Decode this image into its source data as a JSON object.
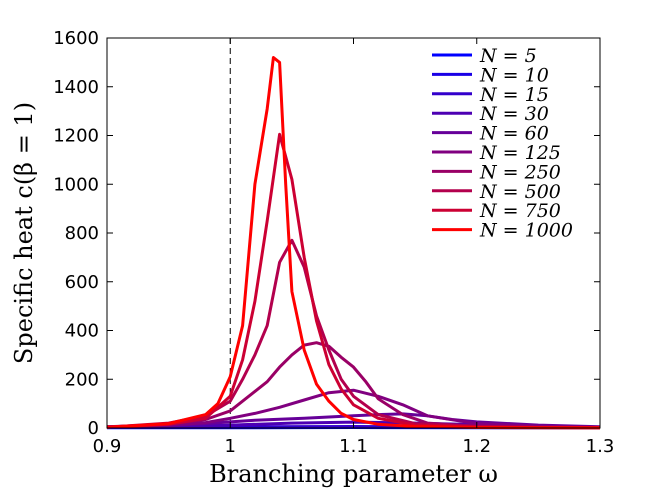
{
  "chart_data": {
    "type": "line",
    "title": "",
    "xlabel": "Branching parameter ω",
    "ylabel": "Specific heat c(β = 1)",
    "xlim": [
      0.9,
      1.3
    ],
    "ylim": [
      0,
      1600
    ],
    "xticks": [
      "0.9",
      "1",
      "1.1",
      "1.2",
      "1.3"
    ],
    "yticks": [
      "0",
      "200",
      "400",
      "600",
      "800",
      "1000",
      "1200",
      "1400",
      "1600"
    ],
    "grid": false,
    "legend_position": "top-right",
    "reference_line": {
      "x": 1.0,
      "style": "dashed",
      "color": "#000000"
    },
    "series": [
      {
        "name": "N = 5",
        "color": "#0000ff",
        "x": [
          0.9,
          1.0,
          1.1,
          1.2,
          1.3
        ],
        "y": [
          1,
          1,
          2,
          1,
          1
        ]
      },
      {
        "name": "N = 10",
        "color": "#1a00e6",
        "x": [
          0.9,
          1.0,
          1.1,
          1.2,
          1.3
        ],
        "y": [
          2,
          3,
          4,
          2,
          1
        ]
      },
      {
        "name": "N = 15",
        "color": "#3300cc",
        "x": [
          0.9,
          1.0,
          1.1,
          1.2,
          1.3
        ],
        "y": [
          3,
          5,
          6,
          3,
          1
        ]
      },
      {
        "name": "N = 30",
        "color": "#4d00b3",
        "x": [
          0.9,
          0.95,
          1.0,
          1.05,
          1.1,
          1.15,
          1.2,
          1.25,
          1.3
        ],
        "y": [
          3,
          6,
          12,
          20,
          24,
          20,
          14,
          8,
          3
        ]
      },
      {
        "name": "N = 60",
        "color": "#660099",
        "x": [
          0.9,
          0.95,
          0.98,
          1.0,
          1.02,
          1.04,
          1.06,
          1.08,
          1.1,
          1.12,
          1.14,
          1.16,
          1.18,
          1.2,
          1.25,
          1.3
        ],
        "y": [
          5,
          10,
          18,
          25,
          32,
          36,
          40,
          45,
          50,
          55,
          58,
          50,
          35,
          25,
          12,
          5
        ]
      },
      {
        "name": "N = 125",
        "color": "#800080",
        "x": [
          0.9,
          0.95,
          0.98,
          1.0,
          1.02,
          1.04,
          1.06,
          1.08,
          1.1,
          1.12,
          1.14,
          1.16,
          1.2,
          1.25,
          1.3
        ],
        "y": [
          5,
          12,
          22,
          40,
          60,
          85,
          115,
          145,
          155,
          130,
          95,
          50,
          18,
          8,
          3
        ]
      },
      {
        "name": "N = 250",
        "color": "#990066",
        "x": [
          0.9,
          0.95,
          0.98,
          1.0,
          1.02,
          1.03,
          1.04,
          1.05,
          1.06,
          1.07,
          1.08,
          1.09,
          1.1,
          1.11,
          1.12,
          1.14,
          1.16,
          1.2,
          1.25,
          1.3
        ],
        "y": [
          5,
          15,
          35,
          70,
          150,
          190,
          250,
          300,
          340,
          350,
          335,
          290,
          250,
          190,
          120,
          55,
          20,
          8,
          3,
          1
        ]
      },
      {
        "name": "N = 500",
        "color": "#b3004d",
        "x": [
          0.9,
          0.95,
          0.98,
          1.0,
          1.01,
          1.02,
          1.03,
          1.04,
          1.05,
          1.06,
          1.07,
          1.08,
          1.09,
          1.1,
          1.12,
          1.15,
          1.2,
          1.25,
          1.3
        ],
        "y": [
          3,
          20,
          50,
          110,
          200,
          300,
          420,
          680,
          770,
          660,
          460,
          320,
          200,
          130,
          55,
          18,
          5,
          2,
          1
        ]
      },
      {
        "name": "N = 750",
        "color": "#cc0033",
        "x": [
          0.9,
          0.95,
          0.98,
          1.0,
          1.01,
          1.02,
          1.03,
          1.04,
          1.05,
          1.06,
          1.07,
          1.08,
          1.09,
          1.1,
          1.12,
          1.15,
          1.2,
          1.25,
          1.3
        ],
        "y": [
          3,
          15,
          40,
          130,
          280,
          520,
          850,
          1205,
          1020,
          700,
          440,
          260,
          160,
          95,
          40,
          12,
          4,
          2,
          1
        ]
      },
      {
        "name": "N = 1000",
        "color": "#ff0000",
        "x": [
          0.9,
          0.95,
          0.98,
          0.99,
          1.0,
          1.01,
          1.02,
          1.03,
          1.035,
          1.04,
          1.045,
          1.05,
          1.06,
          1.07,
          1.08,
          1.09,
          1.1,
          1.12,
          1.15,
          1.2,
          1.25,
          1.3
        ],
        "y": [
          3,
          18,
          55,
          100,
          210,
          420,
          1000,
          1310,
          1520,
          1500,
          1000,
          560,
          320,
          180,
          110,
          60,
          35,
          15,
          6,
          2,
          1,
          1
        ]
      }
    ]
  }
}
